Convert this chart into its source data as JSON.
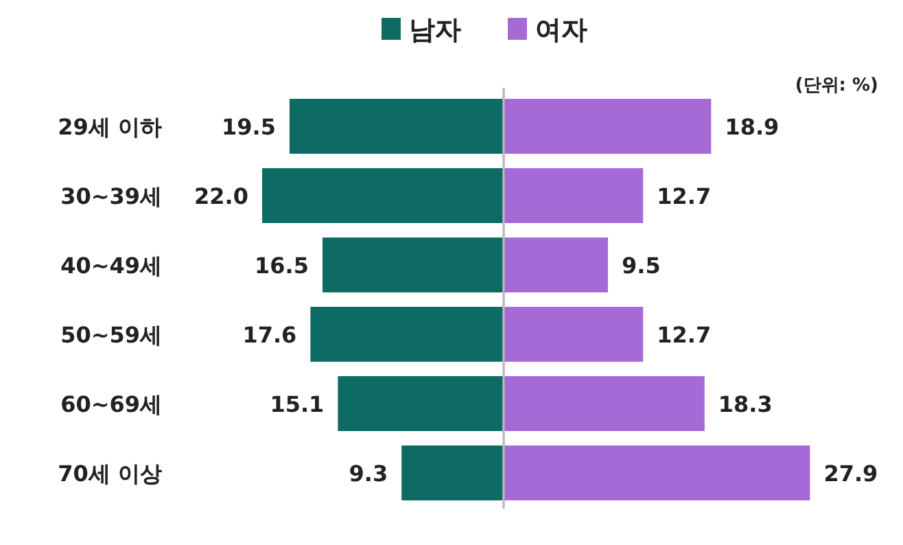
{
  "chart_data": [
    {
      "type": "bar",
      "orientation": "horizontal",
      "categories": [
        "29세 이하",
        "30~39세",
        "40~49세",
        "50~59세",
        "60~69세",
        "70세 이상"
      ],
      "series": [
        {
          "name": "남자",
          "color": "#0e6b63",
          "values": [
            19.5,
            22.0,
            16.5,
            17.6,
            15.1,
            9.3
          ],
          "value_labels": [
            "19.5",
            "22.0",
            "16.5",
            "17.6",
            "15.1",
            "9.3"
          ]
        }
      ],
      "legend": "top"
    },
    {
      "type": "bar",
      "orientation": "horizontal",
      "categories": [
        null,
        null,
        null,
        null,
        null,
        null
      ],
      "series": [
        {
          "name": "여자",
          "color": "#a66ad6",
          "values": [
            18.9,
            12.7,
            9.5,
            12.7,
            18.3,
            27.9
          ],
          "value_labels": [
            "18.9",
            "12.7",
            "9.5",
            "12.7",
            "18.3",
            "27.9"
          ]
        }
      ],
      "legend": "top",
      "annotations": [
        "(단위: %)"
      ]
    }
  ]
}
